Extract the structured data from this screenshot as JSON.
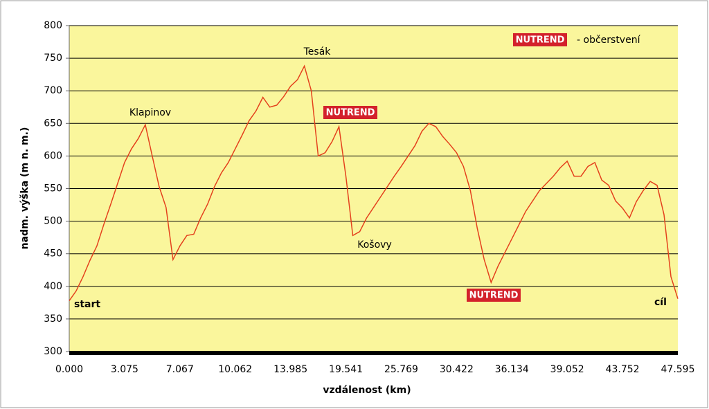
{
  "chart_data": {
    "type": "line",
    "xlabel": "vzdálenost (km)",
    "ylabel": "nadm. výška (m n. m.)",
    "categories": [
      "0.000",
      null,
      null,
      null,
      null,
      null,
      null,
      null,
      "3.075",
      null,
      null,
      null,
      null,
      null,
      null,
      null,
      "7.067",
      null,
      null,
      null,
      null,
      null,
      null,
      null,
      "10.062",
      null,
      null,
      null,
      null,
      null,
      null,
      null,
      "13.985",
      null,
      null,
      null,
      null,
      null,
      null,
      null,
      "19.541",
      null,
      null,
      null,
      null,
      null,
      null,
      null,
      "25.769",
      null,
      null,
      null,
      null,
      null,
      null,
      null,
      "30.422",
      null,
      null,
      null,
      null,
      null,
      null,
      null,
      "36.134",
      null,
      null,
      null,
      null,
      null,
      null,
      null,
      "39.052",
      null,
      null,
      null,
      null,
      null,
      null,
      null,
      "43.752",
      null,
      null,
      null,
      null,
      null,
      null,
      null,
      "47.595"
    ],
    "values": [
      378,
      393,
      415,
      440,
      462,
      495,
      526,
      558,
      590,
      611,
      627,
      648,
      600,
      553,
      521,
      441,
      462,
      478,
      480,
      505,
      526,
      553,
      574,
      590,
      611,
      632,
      654,
      669,
      690,
      675,
      678,
      691,
      707,
      717,
      738,
      700,
      600,
      605,
      622,
      645,
      569,
      478,
      484,
      505,
      521,
      537,
      553,
      569,
      584,
      600,
      616,
      638,
      650,
      645,
      630,
      618,
      605,
      584,
      547,
      489,
      441,
      406,
      431,
      452,
      473,
      494,
      515,
      531,
      547,
      558,
      569,
      582,
      592,
      569,
      569,
      584,
      590,
      563,
      555,
      531,
      520,
      505,
      530,
      547,
      561,
      555,
      510,
      415,
      381
    ],
    "color": "#e4411d",
    "ylim": [
      300,
      800
    ],
    "yticks": [
      300,
      350,
      400,
      450,
      500,
      550,
      600,
      650,
      700,
      750,
      800
    ],
    "grid": true,
    "annotations": [
      "NUTREND",
      "- občerstvení",
      "Tesák",
      "Klapinov",
      "NUTREND",
      "Košovy",
      "NUTREND",
      "start",
      "cíl"
    ]
  }
}
